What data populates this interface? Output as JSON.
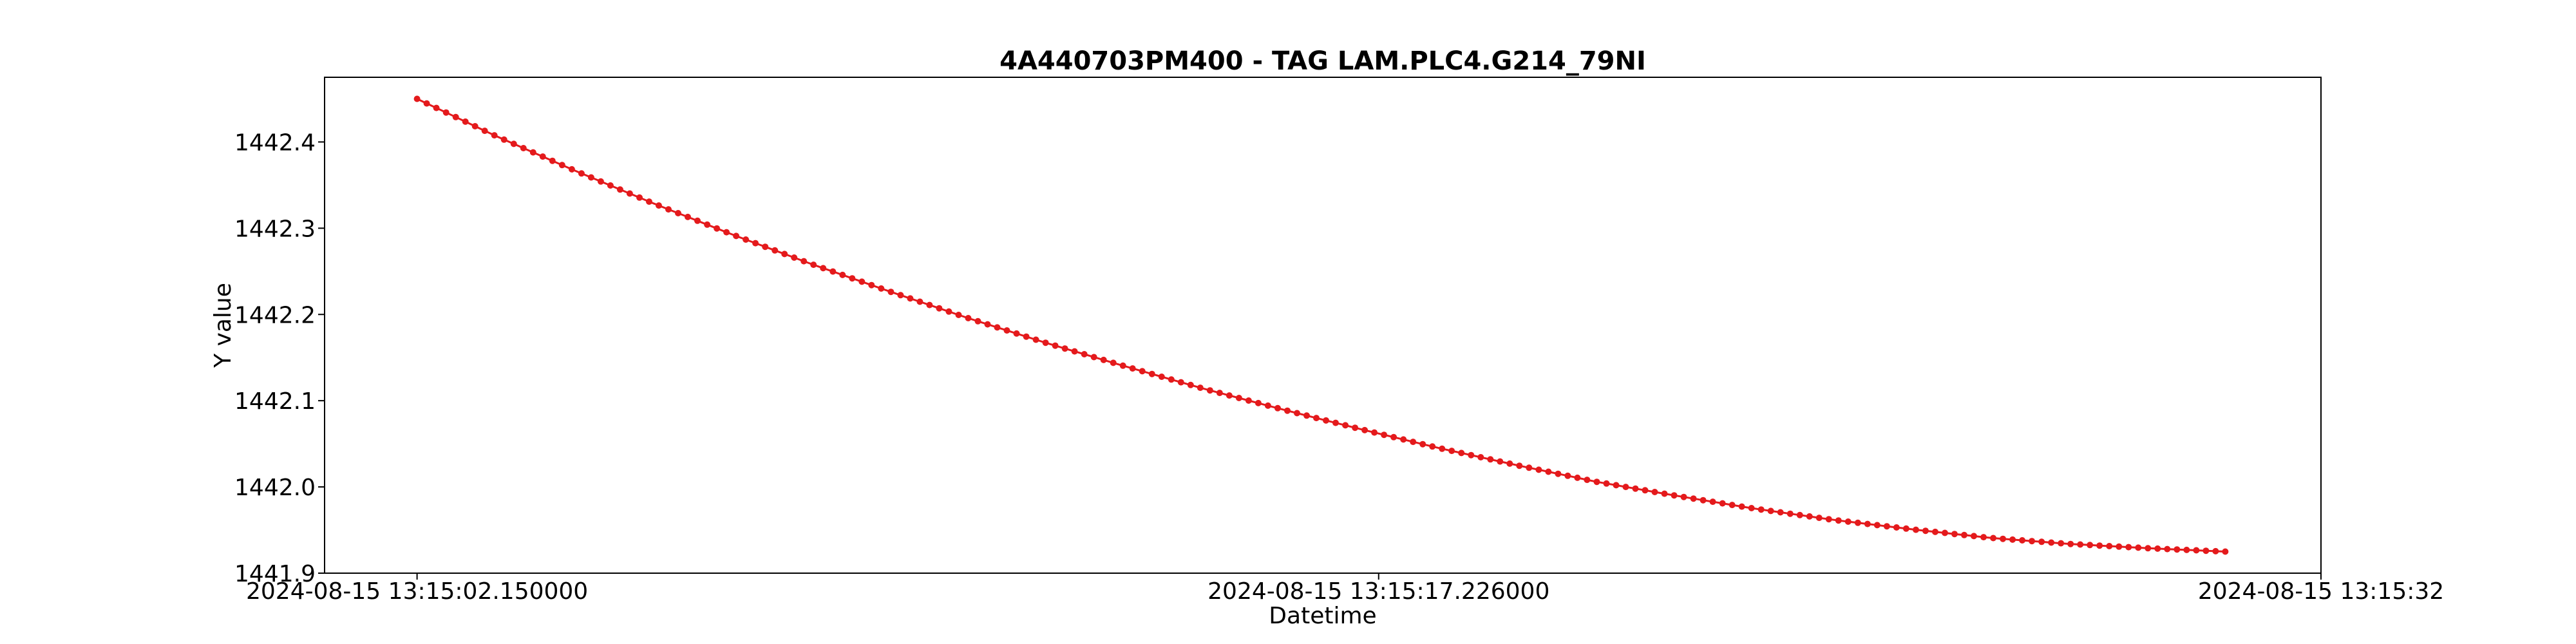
{
  "chart_data": {
    "type": "scatter",
    "title": "4A440703PM400 - TAG LAM.PLC4.G214_79NI",
    "xlabel": "Datetime",
    "ylabel": "Y value",
    "x_tick_labels": [
      "2024-08-15 13:15:02.150000",
      "2024-08-15 13:15:17.226000",
      "2024-08-15 13:15:32"
    ],
    "x_start": "2024-08-15 13:15:02.150000",
    "x_end": "2024-08-15 13:15:30.500000",
    "xlim": [
      "2024-08-15 13:15:00.700000",
      "2024-08-15 13:15:32"
    ],
    "ylim": [
      1441.9,
      1442.475
    ],
    "y_ticks": [
      1441.9,
      1442.0,
      1442.1,
      1442.2,
      1442.3,
      1442.4
    ],
    "y_tick_labels": [
      "1441.9",
      "1442.0",
      "1442.1",
      "1442.2",
      "1442.3",
      "1442.4"
    ],
    "marker_color": "#e41a1c",
    "line_color": "#e41a1c",
    "grid": false,
    "y_samples": [
      1442.45,
      1442.407,
      1442.367,
      1442.329,
      1442.293,
      1442.259,
      1442.227,
      1442.196,
      1442.167,
      1442.14,
      1442.114,
      1442.09,
      1442.067,
      1442.045,
      1442.025,
      1442.006,
      1441.99,
      1441.975,
      1441.962,
      1441.951,
      1441.941,
      1441.934,
      1441.929,
      1441.925
    ],
    "point_count": 188
  }
}
